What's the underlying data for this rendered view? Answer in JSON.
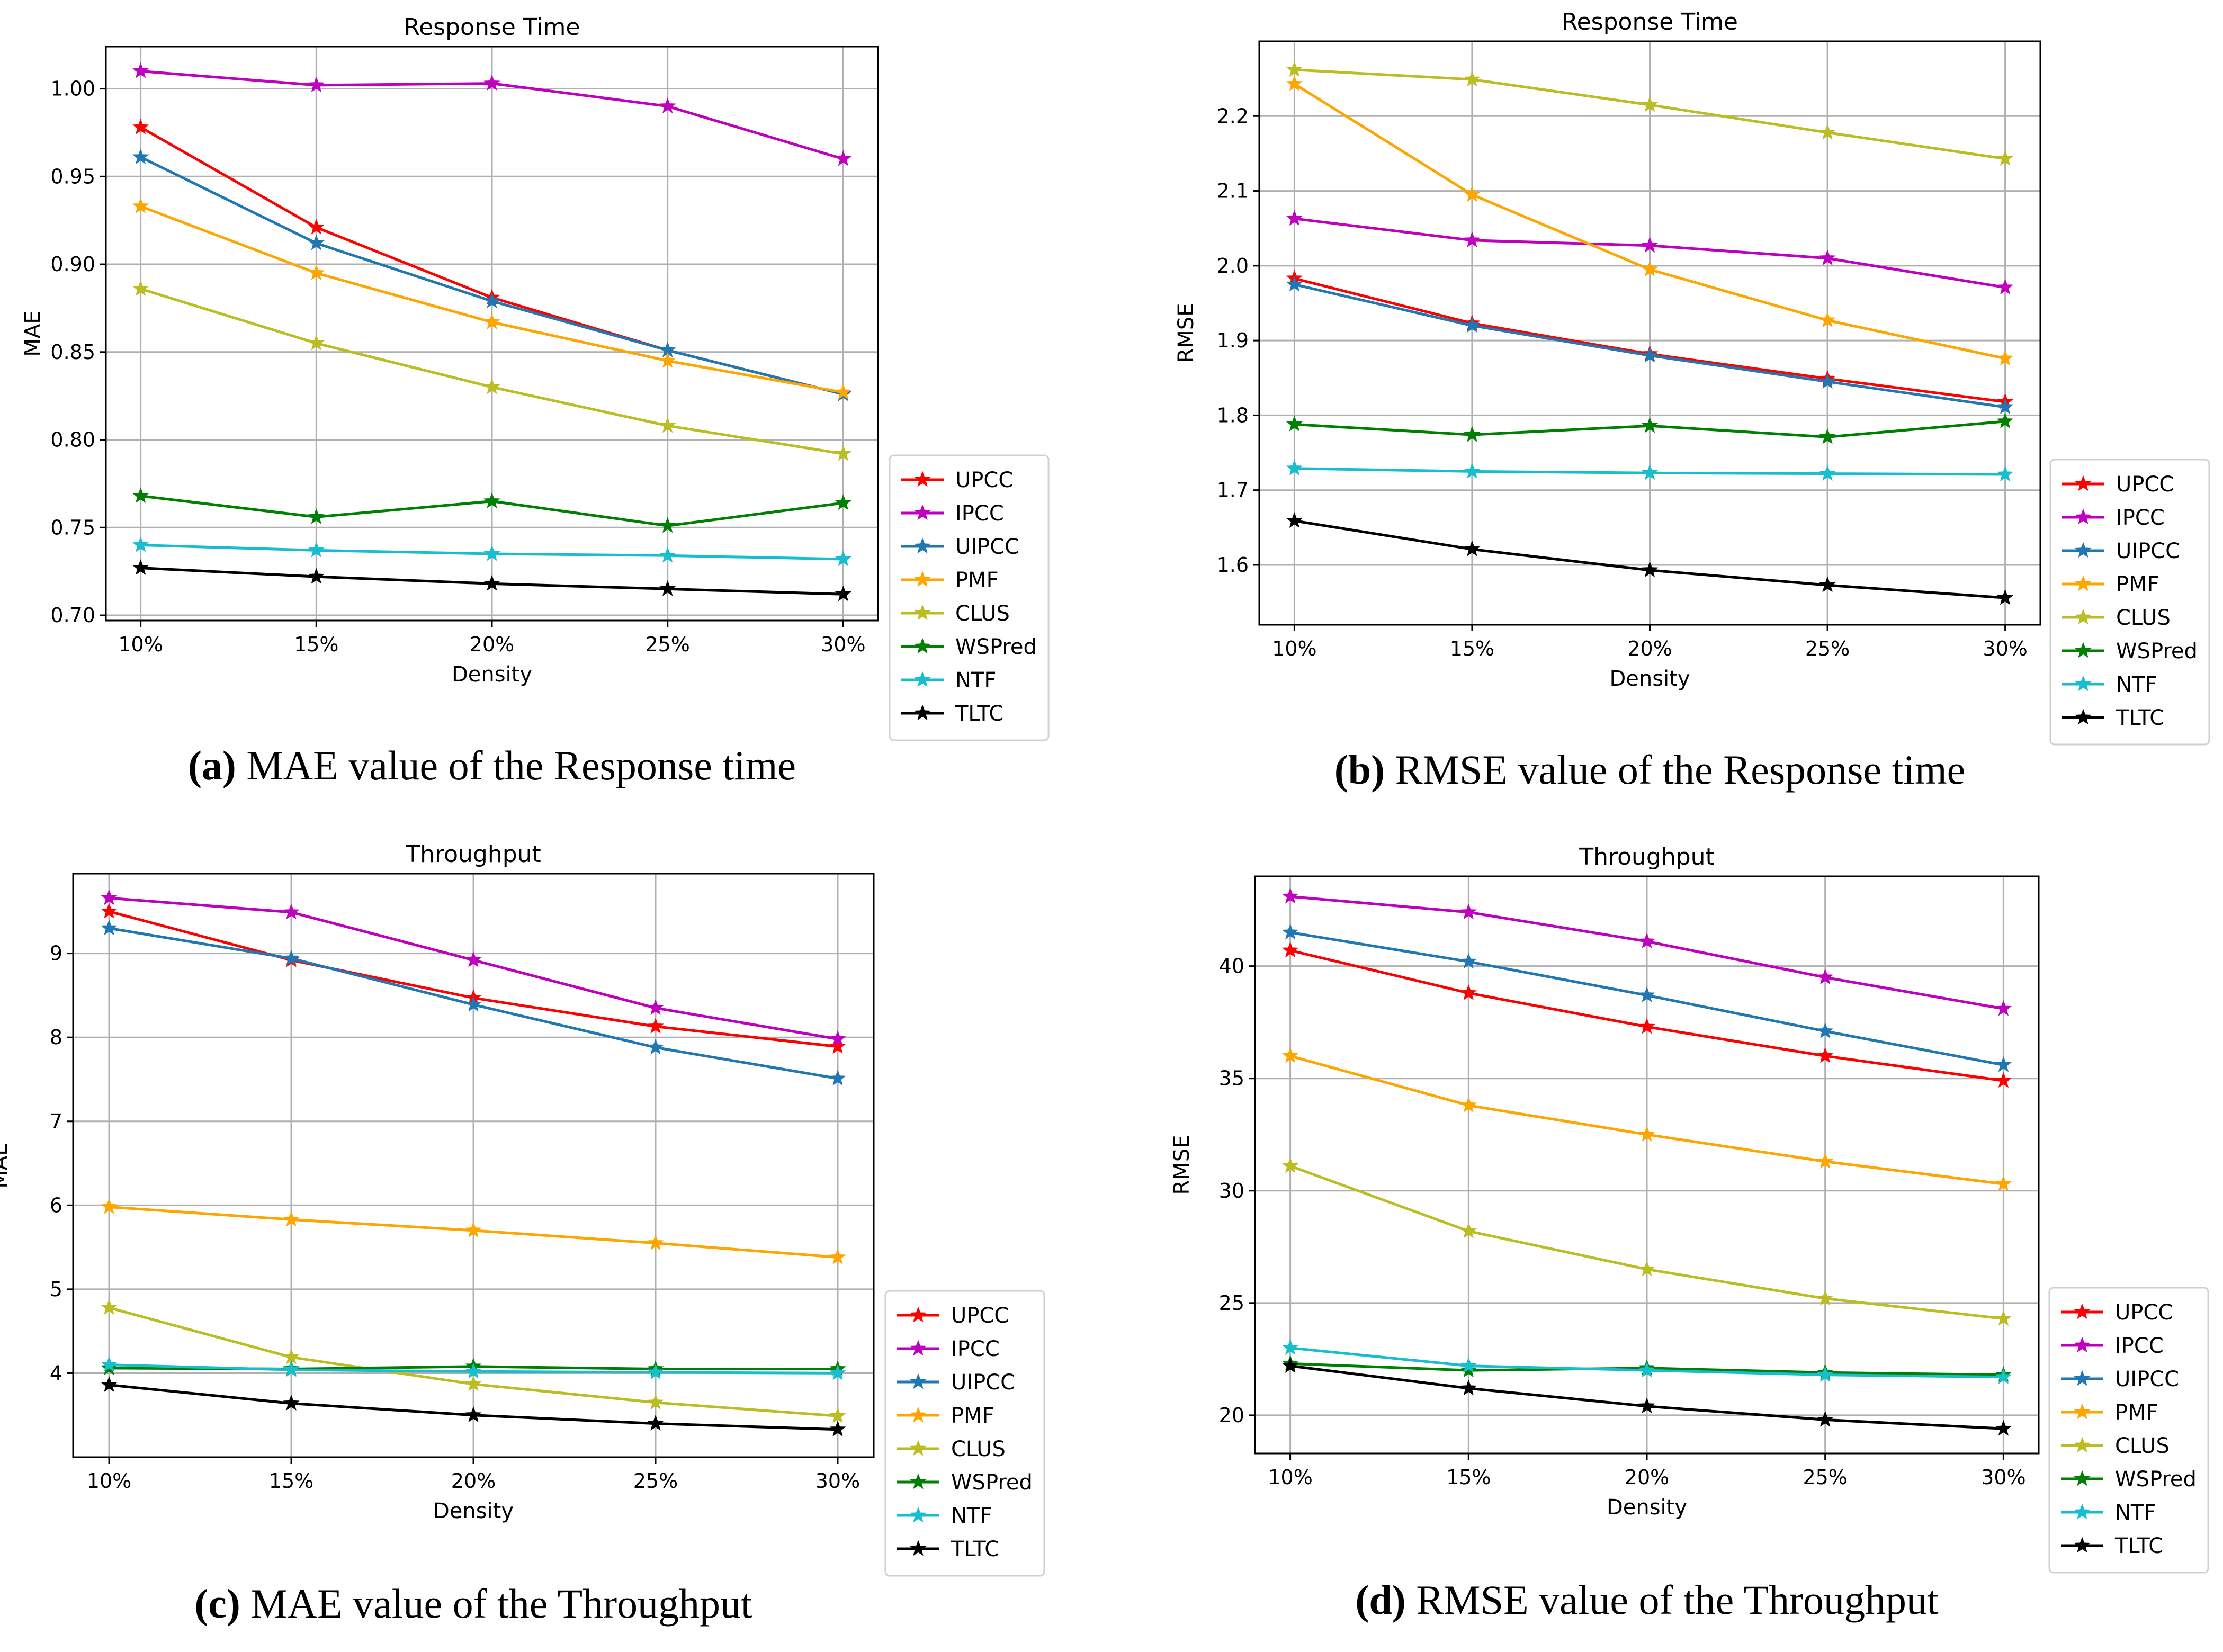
{
  "chart_data": [
    {
      "id": "a",
      "type": "line",
      "title": "Response Time",
      "xlabel": "Density",
      "ylabel": "MAE",
      "categories": [
        "10%",
        "15%",
        "20%",
        "25%",
        "30%"
      ],
      "ylim": [
        0.697,
        1.024
      ],
      "yticks": [
        0.7,
        0.75,
        0.8,
        0.85,
        0.9,
        0.95,
        1.0
      ],
      "ytick_labels": [
        "0.70",
        "0.75",
        "0.80",
        "0.85",
        "0.90",
        "0.95",
        "1.00"
      ],
      "grid": true,
      "legend": "outside-bottom-right",
      "caption_label": "(a)",
      "caption_text": " MAE value of the Response time",
      "series": [
        {
          "name": "UPCC",
          "color": "#ff0000",
          "values": [
            0.978,
            0.921,
            0.881,
            0.851,
            0.826
          ]
        },
        {
          "name": "IPCC",
          "color": "#bf00bf",
          "values": [
            1.01,
            1.002,
            1.003,
            0.99,
            0.96
          ]
        },
        {
          "name": "UIPCC",
          "color": "#1f77b4",
          "values": [
            0.961,
            0.912,
            0.879,
            0.851,
            0.826
          ]
        },
        {
          "name": "PMF",
          "color": "#ffa500",
          "values": [
            0.933,
            0.895,
            0.867,
            0.845,
            0.827
          ]
        },
        {
          "name": "CLUS",
          "color": "#bcbd22",
          "values": [
            0.886,
            0.855,
            0.83,
            0.808,
            0.792
          ]
        },
        {
          "name": "WSPred",
          "color": "#008000",
          "values": [
            0.768,
            0.756,
            0.765,
            0.751,
            0.764
          ]
        },
        {
          "name": "NTF",
          "color": "#17becf",
          "values": [
            0.74,
            0.737,
            0.735,
            0.734,
            0.732
          ]
        },
        {
          "name": "TLTC",
          "color": "#000000",
          "values": [
            0.727,
            0.722,
            0.718,
            0.715,
            0.712
          ]
        }
      ]
    },
    {
      "id": "b",
      "type": "line",
      "title": "Response Time",
      "xlabel": "Density",
      "ylabel": "RMSE",
      "categories": [
        "10%",
        "15%",
        "20%",
        "25%",
        "30%"
      ],
      "ylim": [
        1.52,
        2.3
      ],
      "yticks": [
        1.6,
        1.7,
        1.8,
        1.9,
        2.0,
        2.1,
        2.2
      ],
      "ytick_labels": [
        "1.6",
        "1.7",
        "1.8",
        "1.9",
        "2.0",
        "2.1",
        "2.2"
      ],
      "grid": true,
      "legend": "outside-bottom-right",
      "caption_label": "(b)",
      "caption_text": " RMSE value of the Response time",
      "series": [
        {
          "name": "UPCC",
          "color": "#ff0000",
          "values": [
            1.983,
            1.923,
            1.882,
            1.849,
            1.818
          ]
        },
        {
          "name": "IPCC",
          "color": "#bf00bf",
          "values": [
            2.063,
            2.034,
            2.027,
            2.01,
            1.971
          ]
        },
        {
          "name": "UIPCC",
          "color": "#1f77b4",
          "values": [
            1.975,
            1.92,
            1.88,
            1.845,
            1.811
          ]
        },
        {
          "name": "PMF",
          "color": "#ffa500",
          "values": [
            2.243,
            2.095,
            1.995,
            1.927,
            1.876
          ]
        },
        {
          "name": "CLUS",
          "color": "#bcbd22",
          "values": [
            2.262,
            2.249,
            2.215,
            2.178,
            2.143
          ]
        },
        {
          "name": "WSPred",
          "color": "#008000",
          "values": [
            1.788,
            1.774,
            1.786,
            1.771,
            1.792
          ]
        },
        {
          "name": "NTF",
          "color": "#17becf",
          "values": [
            1.729,
            1.725,
            1.723,
            1.722,
            1.721
          ]
        },
        {
          "name": "TLTC",
          "color": "#000000",
          "values": [
            1.659,
            1.621,
            1.593,
            1.573,
            1.556
          ]
        }
      ]
    },
    {
      "id": "c",
      "type": "line",
      "title": "Throughput",
      "xlabel": "Density",
      "ylabel": "MAE",
      "categories": [
        "10%",
        "15%",
        "20%",
        "25%",
        "30%"
      ],
      "ylim": [
        3.0,
        9.95
      ],
      "yticks": [
        4,
        5,
        6,
        7,
        8,
        9
      ],
      "ytick_labels": [
        "4",
        "5",
        "6",
        "7",
        "8",
        "9"
      ],
      "grid": true,
      "legend": "outside-bottom-right",
      "caption_label": "(c)",
      "caption_text": " MAE value of the Throughput",
      "series": [
        {
          "name": "UPCC",
          "color": "#ff0000",
          "values": [
            9.5,
            8.92,
            8.47,
            8.13,
            7.89
          ]
        },
        {
          "name": "IPCC",
          "color": "#bf00bf",
          "values": [
            9.66,
            9.49,
            8.92,
            8.35,
            7.98
          ]
        },
        {
          "name": "UIPCC",
          "color": "#1f77b4",
          "values": [
            9.3,
            8.94,
            8.39,
            7.88,
            7.51
          ]
        },
        {
          "name": "PMF",
          "color": "#ffa500",
          "values": [
            5.98,
            5.83,
            5.7,
            5.55,
            5.38
          ]
        },
        {
          "name": "CLUS",
          "color": "#bcbd22",
          "values": [
            4.78,
            4.19,
            3.87,
            3.65,
            3.49
          ]
        },
        {
          "name": "WSPred",
          "color": "#008000",
          "values": [
            4.06,
            4.05,
            4.08,
            4.05,
            4.05
          ]
        },
        {
          "name": "NTF",
          "color": "#17becf",
          "values": [
            4.1,
            4.04,
            4.02,
            4.01,
            4.0
          ]
        },
        {
          "name": "TLTC",
          "color": "#000000",
          "values": [
            3.86,
            3.64,
            3.5,
            3.4,
            3.33
          ]
        }
      ]
    },
    {
      "id": "d",
      "type": "line",
      "title": "Throughput",
      "xlabel": "Density",
      "ylabel": "RMSE",
      "categories": [
        "10%",
        "15%",
        "20%",
        "25%",
        "30%"
      ],
      "ylim": [
        18.3,
        44.0
      ],
      "yticks": [
        20,
        25,
        30,
        35,
        40
      ],
      "ytick_labels": [
        "20",
        "25",
        "30",
        "35",
        "40"
      ],
      "grid": true,
      "legend": "outside-bottom-right",
      "caption_label": "(d)",
      "caption_text": " RMSE value of the Throughput",
      "series": [
        {
          "name": "UPCC",
          "color": "#ff0000",
          "values": [
            40.7,
            38.8,
            37.3,
            36.0,
            34.9
          ]
        },
        {
          "name": "IPCC",
          "color": "#bf00bf",
          "values": [
            43.1,
            42.4,
            41.1,
            39.5,
            38.1
          ]
        },
        {
          "name": "UIPCC",
          "color": "#1f77b4",
          "values": [
            41.5,
            40.2,
            38.7,
            37.1,
            35.6
          ]
        },
        {
          "name": "PMF",
          "color": "#ffa500",
          "values": [
            36.0,
            33.8,
            32.5,
            31.3,
            30.3
          ]
        },
        {
          "name": "CLUS",
          "color": "#bcbd22",
          "values": [
            31.1,
            28.2,
            26.5,
            25.2,
            24.3
          ]
        },
        {
          "name": "WSPred",
          "color": "#008000",
          "values": [
            22.3,
            22.0,
            22.1,
            21.9,
            21.8
          ]
        },
        {
          "name": "NTF",
          "color": "#17becf",
          "values": [
            23.0,
            22.2,
            22.0,
            21.8,
            21.7
          ]
        },
        {
          "name": "TLTC",
          "color": "#000000",
          "values": [
            22.2,
            21.2,
            20.4,
            19.8,
            19.4
          ]
        }
      ]
    }
  ]
}
